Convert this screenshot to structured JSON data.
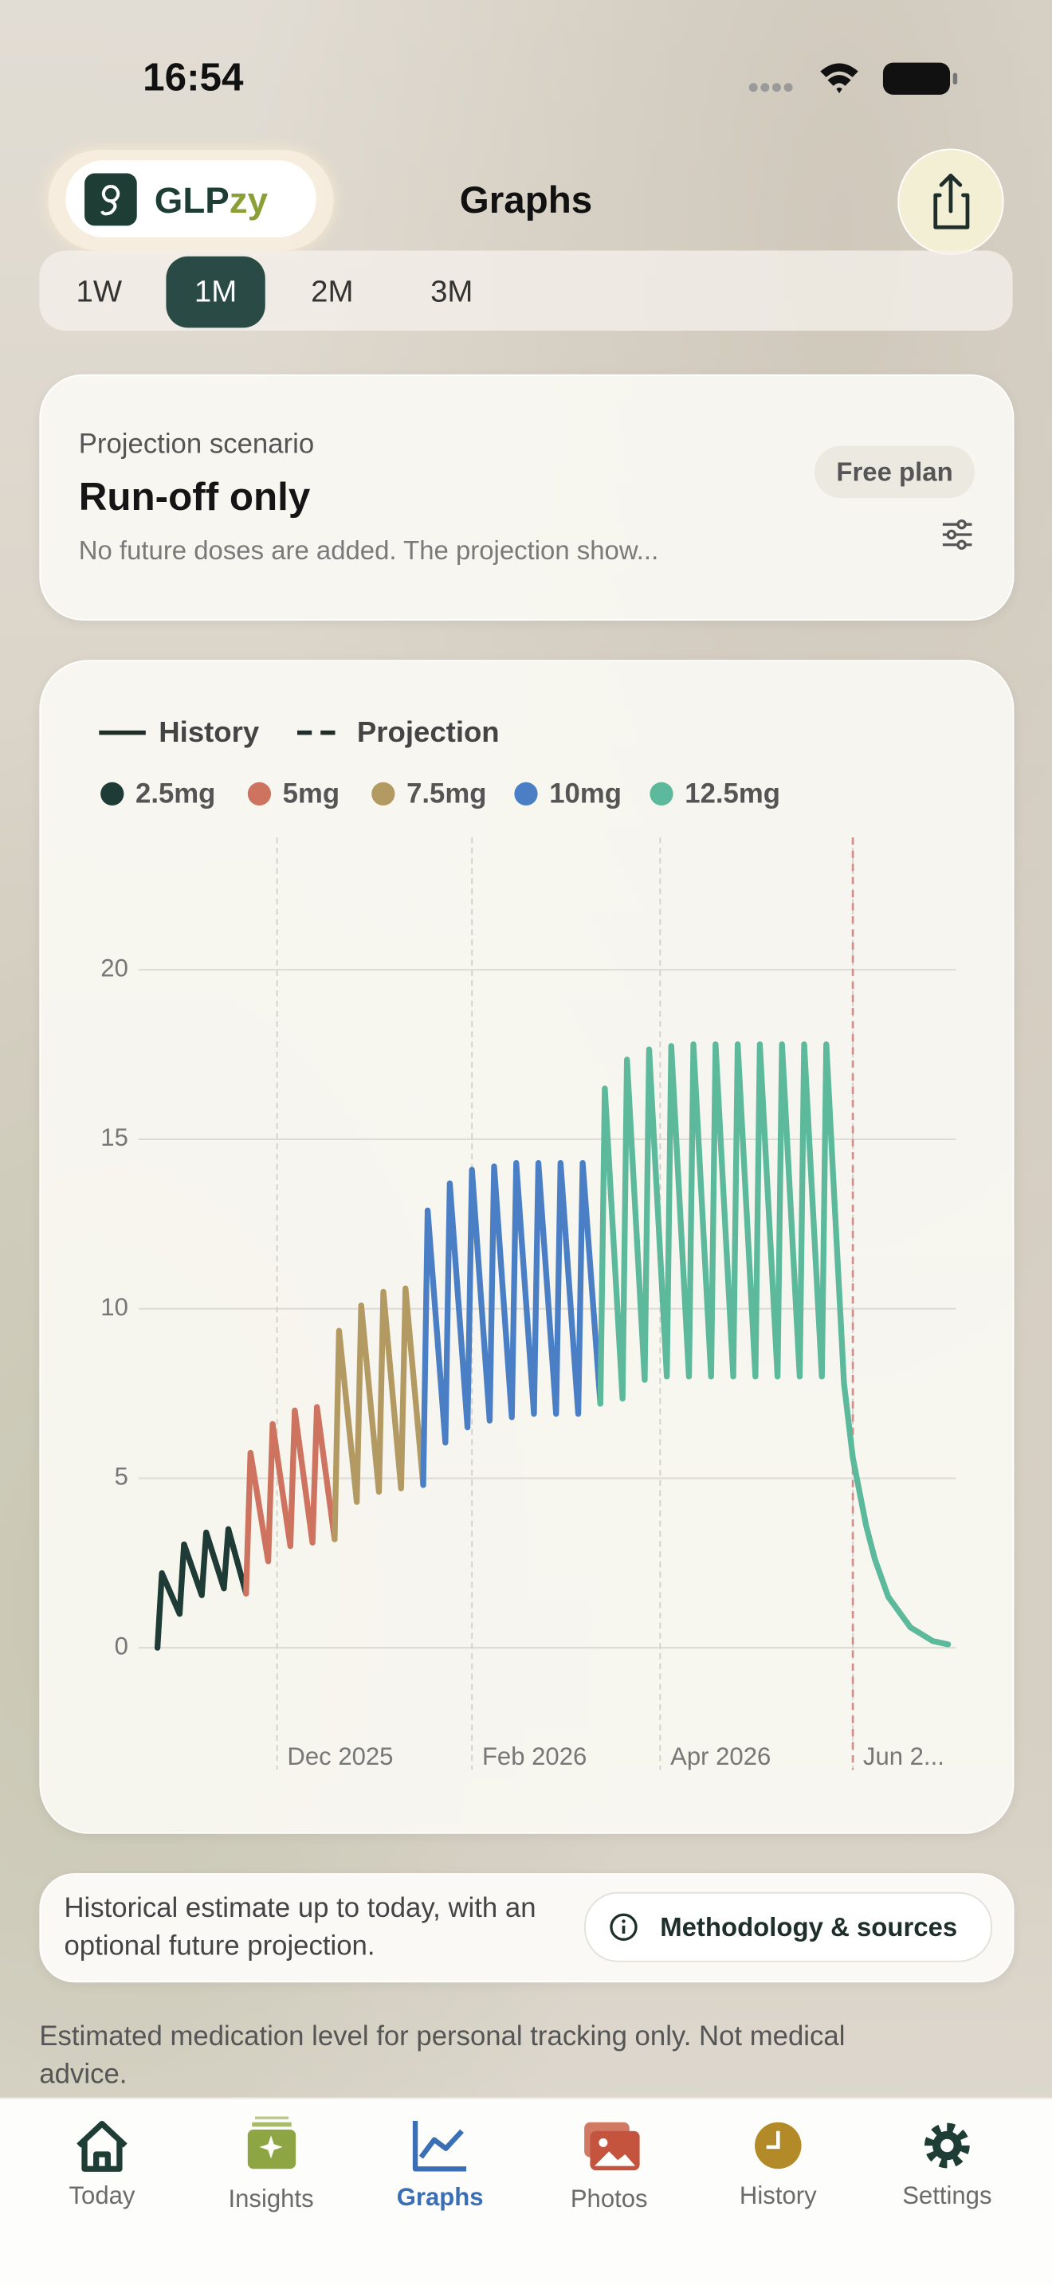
{
  "status_bar": {
    "time": "16:54"
  },
  "header": {
    "brand": [
      "GLP",
      "zy"
    ],
    "title": "Graphs"
  },
  "range_tabs": {
    "options": [
      "1W",
      "1M",
      "2M",
      "3M"
    ],
    "selected": 1
  },
  "scenario_card": {
    "label": "Projection scenario",
    "title": "Run-off only",
    "description": "No future doses are added. The projection show...",
    "badge": "Free plan"
  },
  "chart_data": {
    "type": "line",
    "line_styles": [
      {
        "name": "History",
        "dash": false
      },
      {
        "name": "Projection",
        "dash": true
      }
    ],
    "series": [
      {
        "name": "2.5mg",
        "color": "#1f3b35",
        "x": [
          0,
          0.2,
          1,
          1.2,
          2,
          2.2,
          3,
          3.2,
          4
        ],
        "values": [
          0,
          2.2,
          1.0,
          3.05,
          1.55,
          3.4,
          1.75,
          3.5,
          1.6
        ]
      },
      {
        "name": "5mg",
        "color": "#cd735f",
        "x": [
          4,
          4.2,
          5,
          5.2,
          6,
          6.2,
          7,
          7.2,
          8
        ],
        "values": [
          1.6,
          5.75,
          2.55,
          6.6,
          3.0,
          7.0,
          3.1,
          7.1,
          3.2
        ]
      },
      {
        "name": "7.5mg",
        "color": "#b39a63",
        "x": [
          8,
          8.2,
          9,
          9.2,
          10,
          10.2,
          11,
          11.2,
          12
        ],
        "values": [
          3.2,
          9.35,
          4.3,
          10.1,
          4.6,
          10.5,
          4.7,
          10.6,
          4.8
        ]
      },
      {
        "name": "10mg",
        "color": "#4a7fc6",
        "x": [
          12,
          12.2,
          13,
          13.2,
          14,
          14.2,
          15,
          15.2,
          16,
          16.2,
          17,
          17.2,
          18,
          18.2,
          19,
          19.2,
          20
        ],
        "values": [
          4.8,
          12.9,
          6.05,
          13.7,
          6.5,
          14.1,
          6.7,
          14.2,
          6.8,
          14.3,
          6.9,
          14.3,
          6.9,
          14.3,
          6.9,
          14.3,
          7.2
        ]
      },
      {
        "name": "12.5mg",
        "color": "#5db99b",
        "x": [
          20,
          20.2,
          21,
          21.2,
          22,
          22.2,
          23,
          23.2,
          24,
          24.2,
          25,
          25.2,
          26,
          26.2,
          27,
          27.2,
          28,
          28.2,
          29,
          29.2,
          30,
          30.2,
          31,
          31.4,
          32,
          32.4,
          33,
          34,
          35,
          35.7
        ],
        "values": [
          7.2,
          16.5,
          7.35,
          17.35,
          7.9,
          17.65,
          8.0,
          17.75,
          8.0,
          17.8,
          8.0,
          17.8,
          8.0,
          17.8,
          8.0,
          17.8,
          8.0,
          17.8,
          8.0,
          17.8,
          8.0,
          17.8,
          7.8,
          5.6,
          3.6,
          2.6,
          1.5,
          0.6,
          0.2,
          0.1
        ]
      }
    ],
    "xlim": [
      -0.86,
      36.05
    ],
    "xticks": [
      {
        "value": 5.4,
        "label": "Dec 2025"
      },
      {
        "value": 14.2,
        "label": "Feb 2026"
      },
      {
        "value": 22.7,
        "label": "Apr 2026"
      },
      {
        "value": 31.4,
        "label": "Jun 2..."
      }
    ],
    "ylim": [
      -3.6,
      23.9
    ],
    "yticks": [
      0,
      5,
      10,
      15,
      20
    ],
    "grid": true,
    "today_line": {
      "x": 31.4,
      "color": "#d98c8c"
    }
  },
  "info_card": {
    "text": "Historical estimate up to today, with an optional future projection.",
    "button": "Methodology & sources"
  },
  "disclaimer": "Estimated medication level for personal tracking only. Not medical advice.",
  "tab_bar": {
    "tabs": [
      "Today",
      "Insights",
      "Graphs",
      "Photos",
      "History",
      "Settings"
    ],
    "selected": 2
  }
}
